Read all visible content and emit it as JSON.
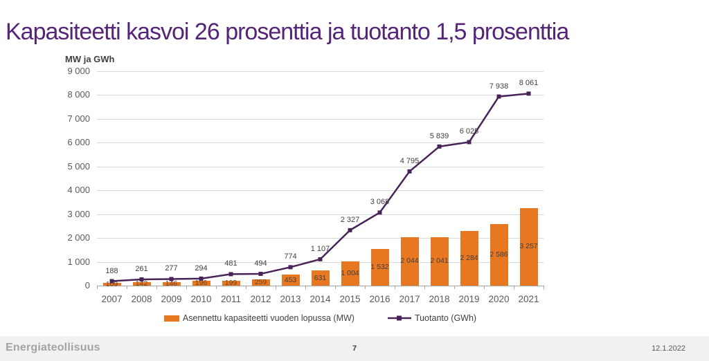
{
  "slide": {
    "title": "Kapasiteetti kasvoi 26 prosenttia ja tuotanto 1,5 prosenttia",
    "footer": {
      "logo": "Energiateollisuus",
      "page_number": "7",
      "date": "12.1.2022"
    }
  },
  "colors": {
    "title": "#542478",
    "bar": "#E87722",
    "line": "#472358",
    "grid": "#d9d9d9",
    "axis_text": "#595959",
    "bar_label_small": "#6b4423",
    "bar_label_large": "#3f3f3f",
    "footer_bg": "#f1f1f2"
  },
  "chart_data": {
    "type": "bar+line",
    "title": "",
    "axis_title": "MW ja GWh",
    "categories": [
      "2007",
      "2008",
      "2009",
      "2010",
      "2011",
      "2012",
      "2013",
      "2014",
      "2015",
      "2016",
      "2017",
      "2018",
      "2019",
      "2020",
      "2021"
    ],
    "series": [
      {
        "name": "Asennettu kapasiteetti vuoden lopussa (MW)",
        "type": "bar",
        "color": "#E87722",
        "values": [
          109,
          142,
          146,
          196,
          199,
          259,
          453,
          631,
          1004,
          1532,
          2044,
          2041,
          2284,
          2586,
          3257
        ]
      },
      {
        "name": "Tuotanto (GWh)",
        "type": "line",
        "color": "#472358",
        "values": [
          188,
          261,
          277,
          294,
          481,
          494,
          774,
          1107,
          2327,
          3068,
          4795,
          5839,
          6025,
          7938,
          8061
        ]
      }
    ],
    "ylim": [
      0,
      9000
    ],
    "ytick_step": 1000,
    "grid": true,
    "legend_position": "bottom",
    "data_labels": true
  }
}
